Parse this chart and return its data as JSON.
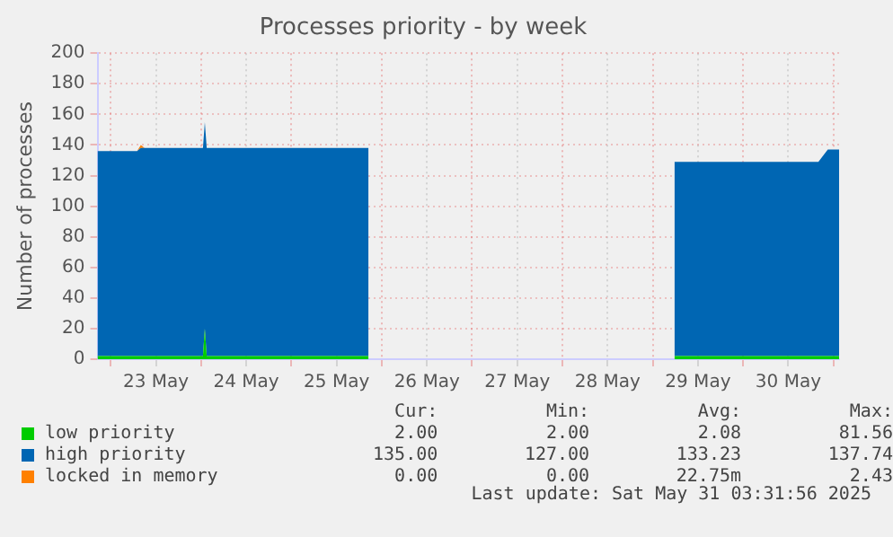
{
  "chart_data": {
    "type": "area",
    "title": "Processes priority - by week",
    "ylabel": "Number of processes",
    "x": [
      "2025-05-22T20:30",
      "2025-05-23T07:00",
      "2025-05-23T08:00",
      "2025-05-23T09:00",
      "2025-05-24T00:30",
      "2025-05-24T01:00",
      "2025-05-24T01:30",
      "2025-05-25T20:30",
      "2025-05-27T00:00",
      "2025-05-29T05:45",
      "2025-05-30T20:00",
      "2025-05-30T22:30",
      "2025-05-31T01:30"
    ],
    "series": [
      {
        "name": "low priority",
        "color": "#00cc00",
        "values": [
          2,
          2,
          2,
          2,
          2,
          20,
          2,
          2,
          null,
          2,
          2,
          2,
          2
        ]
      },
      {
        "name": "high priority",
        "color": "#0066b3",
        "values": [
          134,
          134,
          136,
          136,
          136,
          135,
          136,
          136,
          null,
          127,
          127,
          135,
          135
        ]
      },
      {
        "name": "locked in memory",
        "color": "#ff8000",
        "values": [
          0,
          0,
          2,
          0,
          0,
          0,
          0,
          0,
          null,
          null,
          null,
          null,
          null
        ]
      }
    ],
    "stacked": true,
    "xlim": [
      "2025-05-22T20:30",
      "2025-05-31T01:30"
    ],
    "xticks": [
      {
        "value": "2025-05-23T00:00",
        "label": null
      },
      {
        "value": "2025-05-23T12:00",
        "label": "23 May"
      },
      {
        "value": "2025-05-24T00:00",
        "label": null
      },
      {
        "value": "2025-05-24T12:00",
        "label": "24 May"
      },
      {
        "value": "2025-05-25T00:00",
        "label": null
      },
      {
        "value": "2025-05-25T12:00",
        "label": "25 May"
      },
      {
        "value": "2025-05-26T00:00",
        "label": null
      },
      {
        "value": "2025-05-26T12:00",
        "label": "26 May"
      },
      {
        "value": "2025-05-27T00:00",
        "label": null
      },
      {
        "value": "2025-05-27T12:00",
        "label": "27 May"
      },
      {
        "value": "2025-05-28T00:00",
        "label": null
      },
      {
        "value": "2025-05-28T12:00",
        "label": "28 May"
      },
      {
        "value": "2025-05-29T00:00",
        "label": null
      },
      {
        "value": "2025-05-29T12:00",
        "label": "29 May"
      },
      {
        "value": "2025-05-30T00:00",
        "label": null
      },
      {
        "value": "2025-05-30T12:00",
        "label": "30 May"
      },
      {
        "value": "2025-05-31T00:00",
        "label": null
      }
    ],
    "ylim": [
      0,
      200
    ],
    "yticks": [
      0,
      20,
      40,
      60,
      80,
      100,
      120,
      140,
      160,
      180,
      200
    ],
    "grid": true,
    "legend": "bottom",
    "annotations": [
      "Cur:",
      "Min:",
      "Avg:",
      "Max:",
      "2.00",
      "2.00",
      "2.08",
      "81.56",
      "135.00",
      "127.00",
      "133.23",
      "137.74",
      "0.00",
      "0.00",
      "22.75m",
      "2.43",
      "Last update: Sat May 31 03:31:56 2025"
    ]
  }
}
